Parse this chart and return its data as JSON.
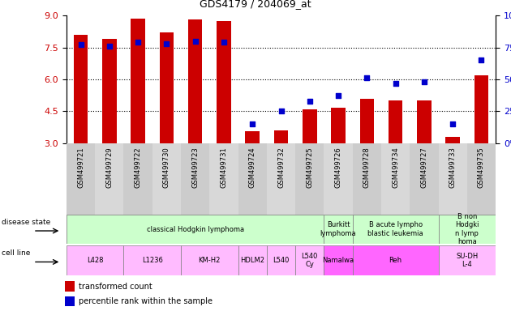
{
  "title": "GDS4179 / 204069_at",
  "samples": [
    "GSM499721",
    "GSM499729",
    "GSM499722",
    "GSM499730",
    "GSM499723",
    "GSM499731",
    "GSM499724",
    "GSM499732",
    "GSM499725",
    "GSM499726",
    "GSM499728",
    "GSM499734",
    "GSM499727",
    "GSM499733",
    "GSM499735"
  ],
  "transformed_count": [
    8.1,
    7.9,
    8.85,
    8.2,
    8.8,
    8.75,
    3.55,
    3.6,
    4.6,
    4.65,
    5.1,
    5.0,
    5.0,
    3.3,
    6.2
  ],
  "percentile_rank": [
    77,
    76,
    79,
    78,
    80,
    79,
    15,
    25,
    33,
    37,
    51,
    47,
    48,
    15,
    65
  ],
  "ylim_left": [
    3,
    9
  ],
  "ylim_right": [
    0,
    100
  ],
  "yticks_left": [
    3,
    4.5,
    6,
    7.5,
    9
  ],
  "yticks_right": [
    0,
    25,
    50,
    75,
    100
  ],
  "bar_color": "#cc0000",
  "dot_color": "#0000cc",
  "bar_width": 0.5,
  "disease_state_groups": [
    {
      "label": "classical Hodgkin lymphoma",
      "start": 0,
      "end": 9,
      "color": "#ccffcc"
    },
    {
      "label": "Burkitt\nlymphoma",
      "start": 9,
      "end": 10,
      "color": "#ccffcc"
    },
    {
      "label": "B acute lympho\nblastic leukemia",
      "start": 10,
      "end": 13,
      "color": "#ccffcc"
    },
    {
      "label": "B non\nHodgki\nn lymp\nhoma",
      "start": 13,
      "end": 15,
      "color": "#ccffcc"
    }
  ],
  "cell_line_groups": [
    {
      "label": "L428",
      "start": 0,
      "end": 2,
      "color": "#ffbbff"
    },
    {
      "label": "L1236",
      "start": 2,
      "end": 4,
      "color": "#ffbbff"
    },
    {
      "label": "KM-H2",
      "start": 4,
      "end": 6,
      "color": "#ffbbff"
    },
    {
      "label": "HDLM2",
      "start": 6,
      "end": 7,
      "color": "#ffbbff"
    },
    {
      "label": "L540",
      "start": 7,
      "end": 8,
      "color": "#ffbbff"
    },
    {
      "label": "L540\nCy",
      "start": 8,
      "end": 9,
      "color": "#ffbbff"
    },
    {
      "label": "Namalwa",
      "start": 9,
      "end": 10,
      "color": "#ff66ff"
    },
    {
      "label": "Reh",
      "start": 10,
      "end": 13,
      "color": "#ff66ff"
    },
    {
      "label": "SU-DH\nL-4",
      "start": 13,
      "end": 15,
      "color": "#ffbbff"
    }
  ],
  "background_color": "#ffffff",
  "bar_color_hex": "#cc0000",
  "dot_color_hex": "#0000cc",
  "tick_label_color_left": "#cc0000",
  "tick_label_color_right": "#0000cc",
  "xtick_bg": "#d0d0d0",
  "grid_yticks": [
    4.5,
    6.0,
    7.5
  ]
}
